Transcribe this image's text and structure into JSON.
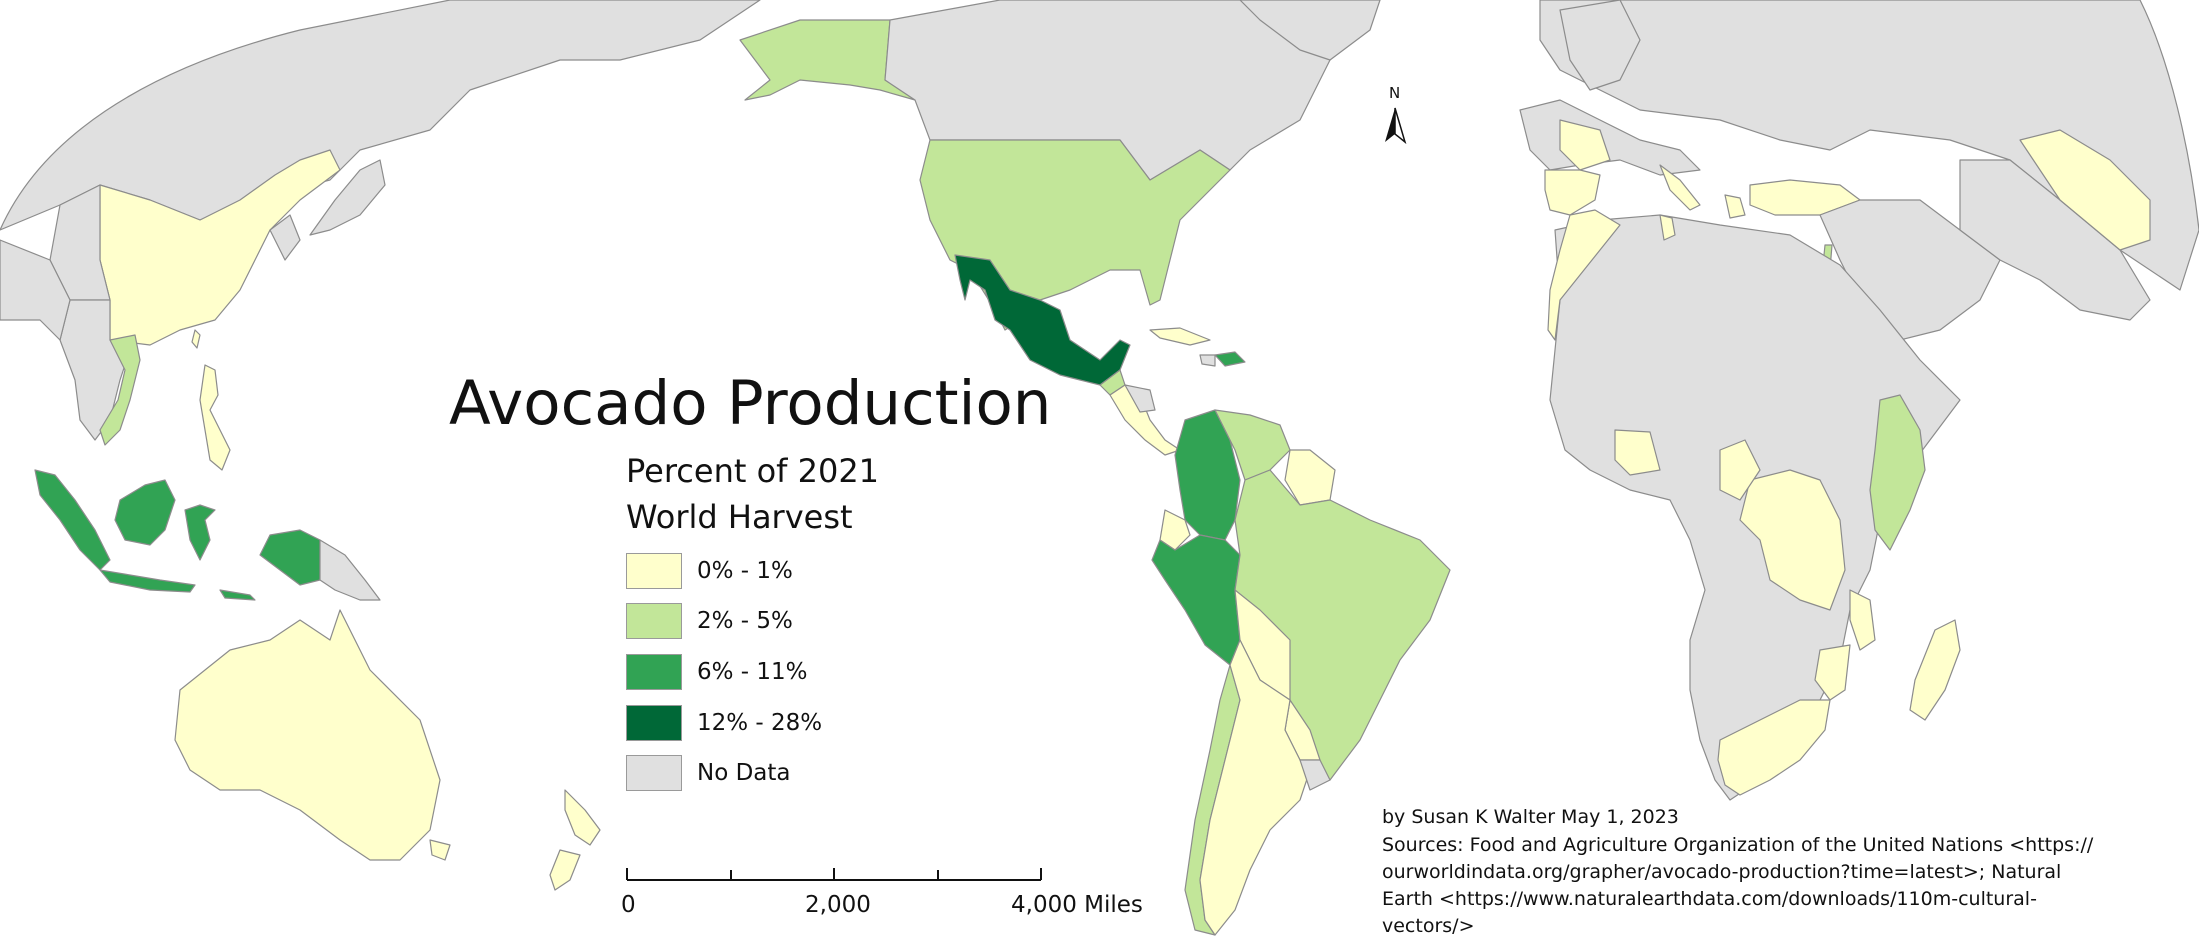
{
  "title": "Avocado Production",
  "legend": {
    "heading_line1": "Percent of 2021",
    "heading_line2": "World Harvest",
    "items": [
      {
        "label": "0% - 1%",
        "color": "#ffffcc"
      },
      {
        "label": "2% - 5%",
        "color": "#c2e699"
      },
      {
        "label": "6% - 11%",
        "color": "#31a354"
      },
      {
        "label": "12% - 28%",
        "color": "#006837"
      },
      {
        "label": "No Data",
        "color": "#e0e0e0"
      }
    ]
  },
  "scale_bar": {
    "tick_labels": [
      "0",
      "2,000",
      "4,000 Miles"
    ]
  },
  "north_arrow": {
    "label": "N"
  },
  "credits": {
    "author": "by Susan K Walter May 1, 2023",
    "sources_line1": "Sources: Food and Agriculture Organization of the United Nations <https://",
    "sources_line2": "ourworldindata.org/grapher/avocado-production?time=latest>;  Natural",
    "sources_line3": "Earth <https://www.naturalearthdata.com/downloads/110m-cultural-",
    "sources_line4": "vectors/>"
  },
  "regions": [
    {
      "name": "Mexico",
      "class": "12% - 28%"
    },
    {
      "name": "Colombia",
      "class": "6% - 11%"
    },
    {
      "name": "Peru",
      "class": "6% - 11%"
    },
    {
      "name": "Dominican Republic",
      "class": "6% - 11%"
    },
    {
      "name": "Indonesia",
      "class": "6% - 11%"
    },
    {
      "name": "United States",
      "class": "2% - 5%"
    },
    {
      "name": "Brazil",
      "class": "2% - 5%"
    },
    {
      "name": "Chile",
      "class": "2% - 5%"
    },
    {
      "name": "Kenya",
      "class": "2% - 5%"
    },
    {
      "name": "Vietnam",
      "class": "2% - 5%"
    },
    {
      "name": "Venezuela",
      "class": "2% - 5%"
    },
    {
      "name": "Guatemala",
      "class": "2% - 5%"
    },
    {
      "name": "Alaska",
      "class": "2% - 5%"
    },
    {
      "name": "China",
      "class": "0% - 1%"
    },
    {
      "name": "Australia",
      "class": "0% - 1%"
    },
    {
      "name": "Argentina",
      "class": "0% - 1%"
    },
    {
      "name": "Ecuador",
      "class": "0% - 1%"
    },
    {
      "name": "Bolivia",
      "class": "0% - 1%"
    },
    {
      "name": "Spain",
      "class": "0% - 1%"
    },
    {
      "name": "Morocco",
      "class": "0% - 1%"
    },
    {
      "name": "Turkey",
      "class": "0% - 1%"
    },
    {
      "name": "DR Congo",
      "class": "0% - 1%"
    },
    {
      "name": "South Africa",
      "class": "0% - 1%"
    },
    {
      "name": "Madagascar",
      "class": "0% - 1%"
    },
    {
      "name": "Philippines",
      "class": "0% - 1%"
    },
    {
      "name": "New Zealand",
      "class": "0% - 1%"
    },
    {
      "name": "Papua New Guinea",
      "class": "No Data"
    },
    {
      "name": "Canada",
      "class": "No Data"
    },
    {
      "name": "Russia",
      "class": "No Data"
    },
    {
      "name": "Sahara region",
      "class": "No Data"
    }
  ]
}
